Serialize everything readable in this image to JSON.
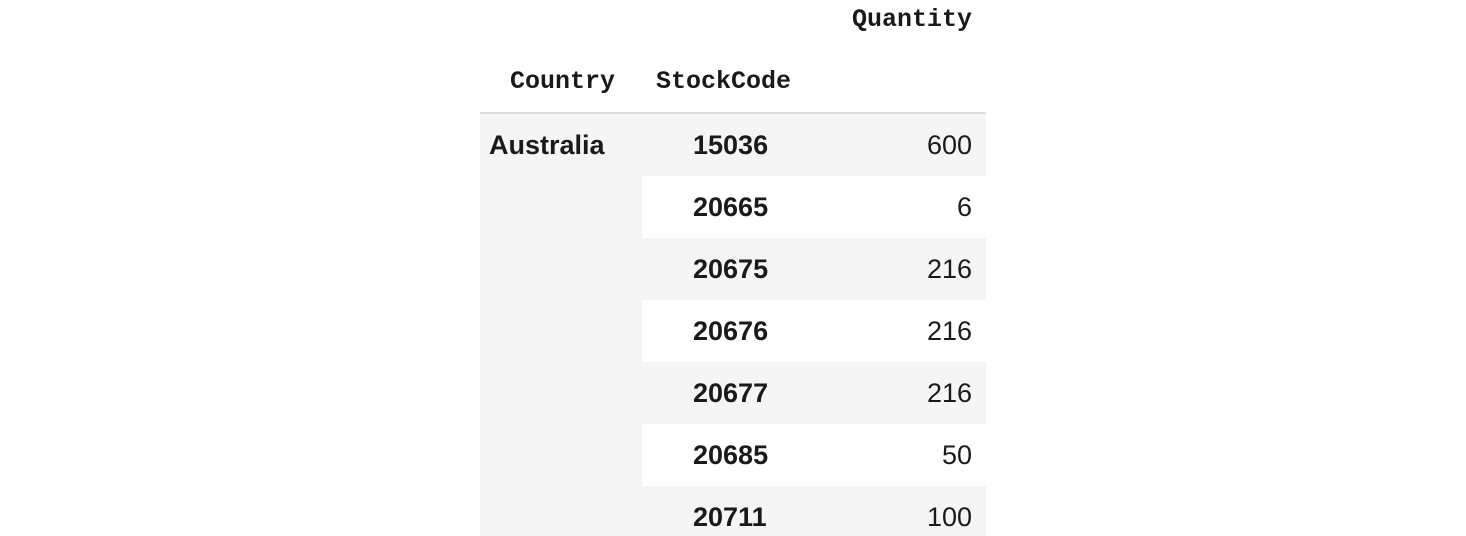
{
  "table": {
    "value_header": "Quantity",
    "index_headers": [
      "Country",
      "StockCode"
    ],
    "country": "Australia",
    "rows": [
      {
        "stockcode": "15036",
        "quantity": "600"
      },
      {
        "stockcode": "20665",
        "quantity": "6"
      },
      {
        "stockcode": "20675",
        "quantity": "216"
      },
      {
        "stockcode": "20676",
        "quantity": "216"
      },
      {
        "stockcode": "20677",
        "quantity": "216"
      },
      {
        "stockcode": "20685",
        "quantity": "50"
      },
      {
        "stockcode": "20711",
        "quantity": "100"
      }
    ]
  }
}
